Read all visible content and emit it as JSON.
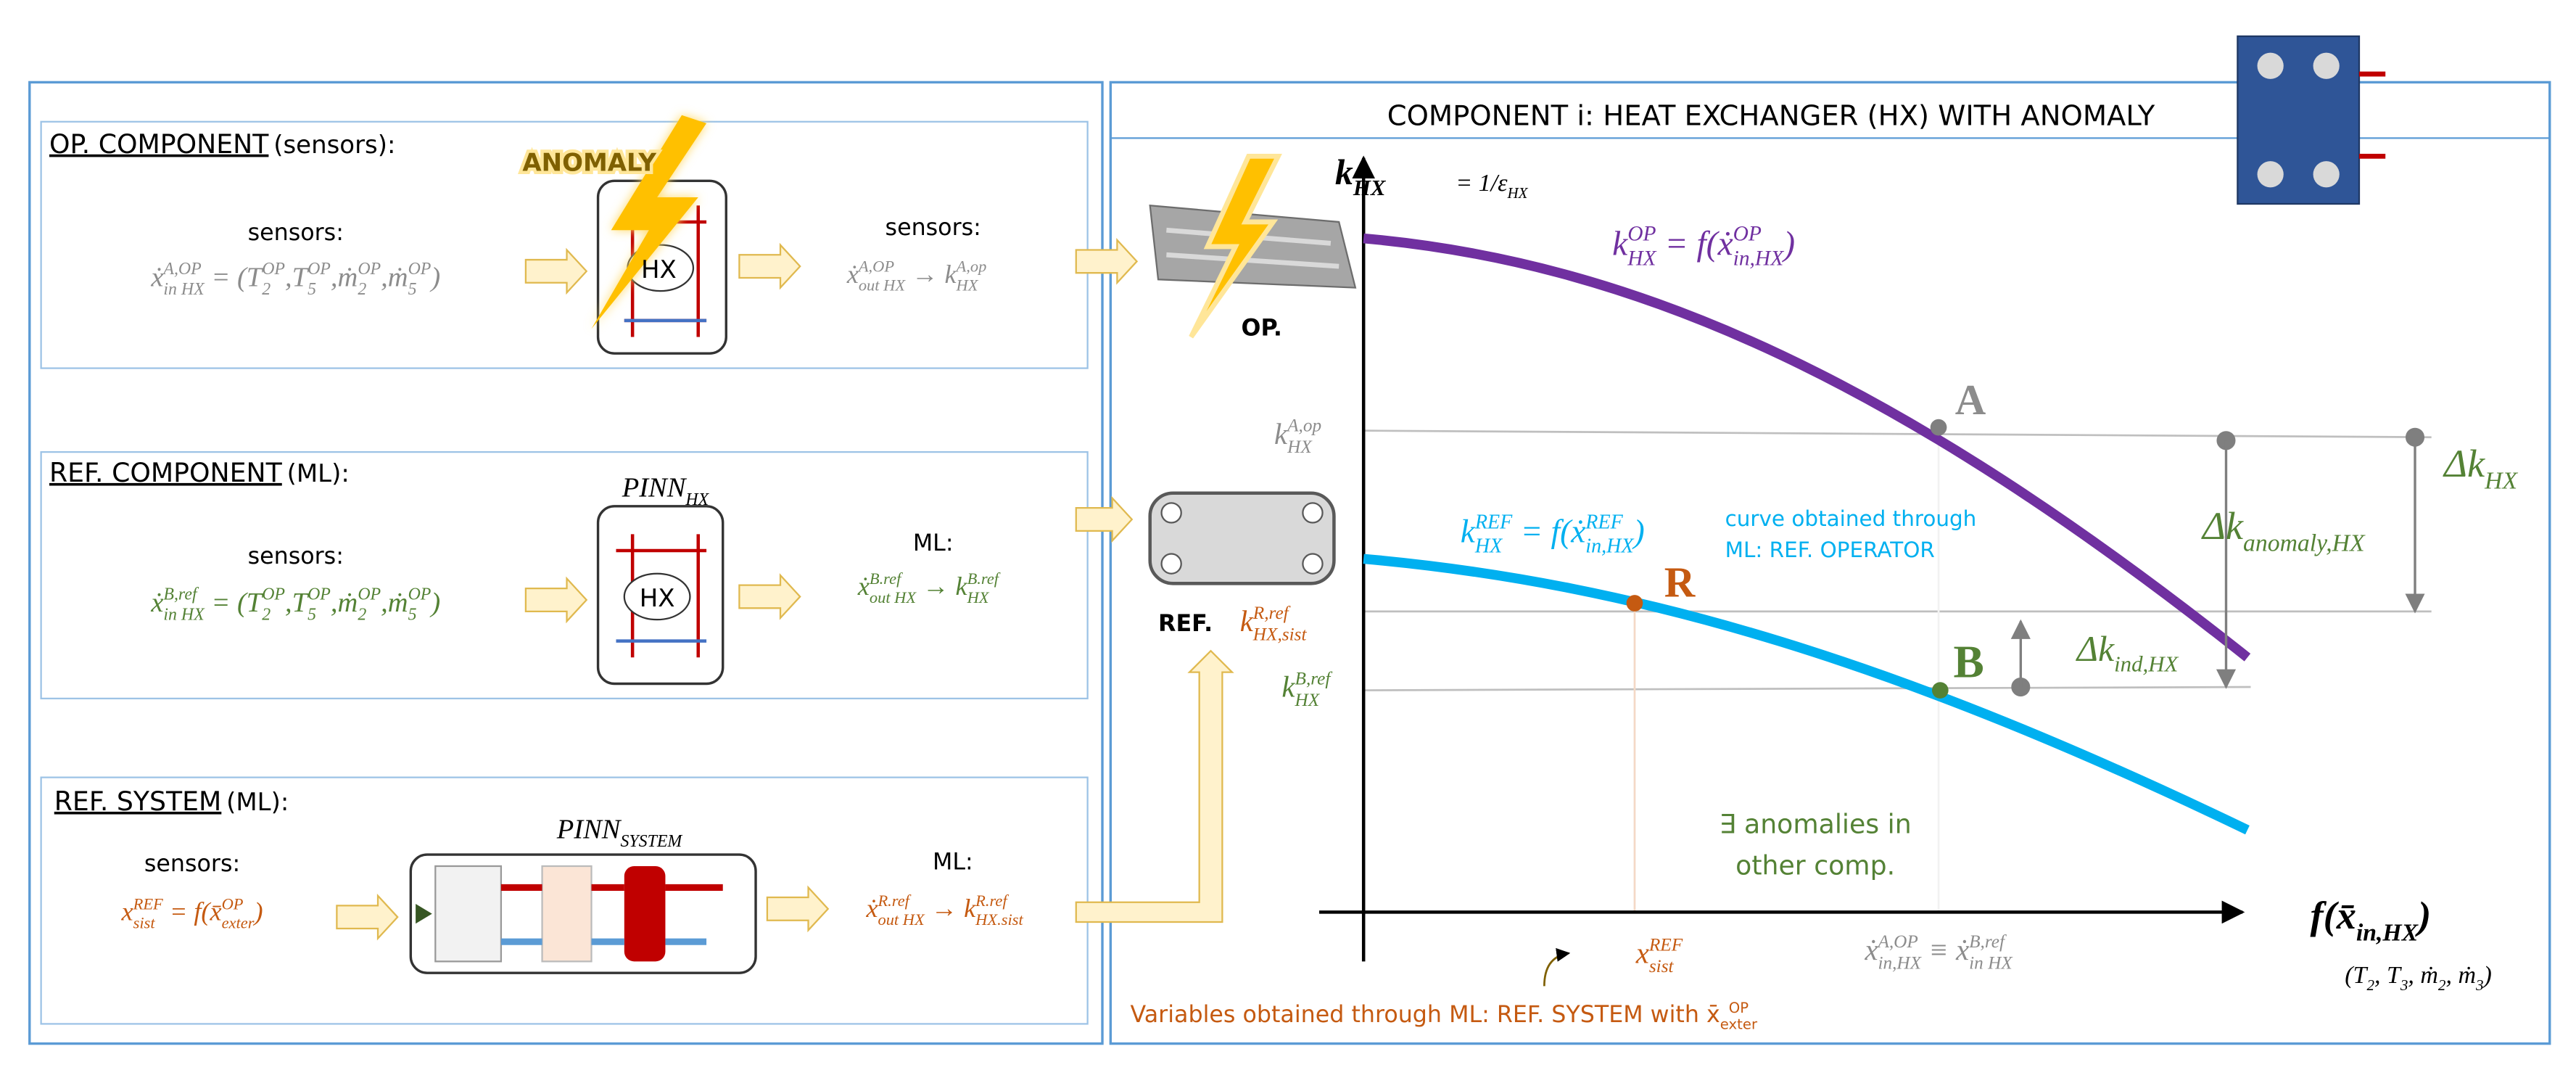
{
  "left_panel": {
    "op_component": {
      "title": "OP. COMPONENT",
      "title_note": "(sensors):",
      "anomaly": "ANOMALY",
      "sensors_in_label": "sensors:",
      "input": [
        {
          "t": "ẋ"
        },
        {
          "t": "in HX",
          "s": "sub"
        },
        {
          "t": "A,OP",
          "s": "sup"
        },
        {
          "t": " = (T"
        },
        {
          "t": "2",
          "s": "sub"
        },
        {
          "t": "OP",
          "s": "sup"
        },
        {
          "t": ",T"
        },
        {
          "t": "5",
          "s": "sub"
        },
        {
          "t": "OP",
          "s": "sup"
        },
        {
          "t": ",ṁ"
        },
        {
          "t": "2",
          "s": "sub"
        },
        {
          "t": "OP",
          "s": "sup"
        },
        {
          "t": ",ṁ"
        },
        {
          "t": "5",
          "s": "sub"
        },
        {
          "t": "OP",
          "s": "sup"
        },
        {
          "t": ")"
        }
      ],
      "block": "HX",
      "sensors_out_label": "sensors:",
      "output": [
        {
          "t": "ẋ"
        },
        {
          "t": "out HX",
          "s": "sub"
        },
        {
          "t": "A,OP",
          "s": "sup"
        },
        {
          "t": " → k"
        },
        {
          "t": "HX",
          "s": "sub"
        },
        {
          "t": "A,op",
          "s": "sup"
        }
      ]
    },
    "ref_component": {
      "title": "REF. COMPONENT",
      "title_note": "(ML):",
      "model": [
        {
          "t": "PINN"
        },
        {
          "t": "HX",
          "s": "sub"
        }
      ],
      "sensors_in_label": "sensors:",
      "input": [
        {
          "t": "ẋ"
        },
        {
          "t": "in HX",
          "s": "sub"
        },
        {
          "t": "B,ref",
          "s": "sup"
        },
        {
          "t": " = (T"
        },
        {
          "t": "2",
          "s": "sub"
        },
        {
          "t": "OP",
          "s": "sup"
        },
        {
          "t": ",T"
        },
        {
          "t": "5",
          "s": "sub"
        },
        {
          "t": "OP",
          "s": "sup"
        },
        {
          "t": ",ṁ"
        },
        {
          "t": "2",
          "s": "sub"
        },
        {
          "t": "OP",
          "s": "sup"
        },
        {
          "t": ",ṁ"
        },
        {
          "t": "5",
          "s": "sub"
        },
        {
          "t": "OP",
          "s": "sup"
        },
        {
          "t": ")"
        }
      ],
      "block": "HX",
      "out_label": "ML:",
      "output": [
        {
          "t": "ẋ"
        },
        {
          "t": "out HX",
          "s": "sub"
        },
        {
          "t": "B.ref",
          "s": "sup"
        },
        {
          "t": " → k"
        },
        {
          "t": "HX",
          "s": "sub"
        },
        {
          "t": "B.ref",
          "s": "sup"
        }
      ]
    },
    "ref_system": {
      "title": "REF. SYSTEM",
      "title_note": "(ML):",
      "model": [
        {
          "t": "PINN"
        },
        {
          "t": "SYSTEM",
          "s": "sub"
        }
      ],
      "sensors_in_label": "sensors:",
      "input": [
        {
          "t": "x"
        },
        {
          "t": "sist",
          "s": "sub"
        },
        {
          "t": "REF",
          "s": "sup"
        },
        {
          "t": " = f(x̄"
        },
        {
          "t": "exter",
          "s": "sub"
        },
        {
          "t": "OP",
          "s": "sup"
        },
        {
          "t": ")"
        }
      ],
      "out_label": "ML:",
      "output": [
        {
          "t": "ẋ"
        },
        {
          "t": "out HX",
          "s": "sub"
        },
        {
          "t": "R.ref",
          "s": "sup"
        },
        {
          "t": " → k"
        },
        {
          "t": "HX.sist",
          "s": "sub"
        },
        {
          "t": "R.ref",
          "s": "sup"
        }
      ]
    }
  },
  "right_panel": {
    "title": "COMPONENT i: HEAT EXCHANGER (HX) WITH ANOMALY",
    "op_label": "OP.",
    "ref_label": "REF.",
    "y_axis_label": [
      {
        "t": "k"
      },
      {
        "t": "HX",
        "s": "sub"
      }
    ],
    "y_axis_def": [
      {
        "t": "= 1/ε"
      },
      {
        "t": "HX",
        "s": "sub"
      }
    ],
    "x_axis_label": [
      {
        "t": "f(x̄"
      },
      {
        "t": "in,HX",
        "s": "sub"
      },
      {
        "t": ")"
      }
    ],
    "x_axis_vars": [
      {
        "t": "(T"
      },
      {
        "t": "2",
        "s": "sub"
      },
      {
        "t": ", T"
      },
      {
        "t": "3",
        "s": "sub"
      },
      {
        "t": ", ṁ"
      },
      {
        "t": "2",
        "s": "sub"
      },
      {
        "t": ", ṁ"
      },
      {
        "t": "3",
        "s": "sub"
      },
      {
        "t": ")"
      }
    ],
    "curve_op": [
      {
        "t": "k"
      },
      {
        "t": "HX",
        "s": "sub"
      },
      {
        "t": "OP",
        "s": "sup"
      },
      {
        "t": " = f(ẋ"
      },
      {
        "t": "in,HX",
        "s": "sub"
      },
      {
        "t": "OP",
        "s": "sup"
      },
      {
        "t": ")"
      }
    ],
    "curve_ref": [
      {
        "t": "k"
      },
      {
        "t": "HX",
        "s": "sub"
      },
      {
        "t": "REF",
        "s": "sup"
      },
      {
        "t": " = f(ẋ"
      },
      {
        "t": "in,HX",
        "s": "sub"
      },
      {
        "t": "REF",
        "s": "sup"
      },
      {
        "t": ")"
      }
    ],
    "curve_ref_note": [
      "curve obtained through",
      "ML: REF. OPERATOR"
    ],
    "point_a": "A",
    "point_r": "R",
    "point_b": "B",
    "k_a": [
      {
        "t": "k"
      },
      {
        "t": "HX",
        "s": "sub"
      },
      {
        "t": "A,op",
        "s": "sup"
      }
    ],
    "k_r": [
      {
        "t": "k"
      },
      {
        "t": "HX,sist",
        "s": "sub"
      },
      {
        "t": "R,ref",
        "s": "sup"
      }
    ],
    "k_b": [
      {
        "t": "k"
      },
      {
        "t": "HX",
        "s": "sub"
      },
      {
        "t": "B,ref",
        "s": "sup"
      }
    ],
    "delta_total": [
      {
        "t": "Δk"
      },
      {
        "t": "HX",
        "s": "sub"
      }
    ],
    "delta_anomaly": [
      {
        "t": "Δk"
      },
      {
        "t": "anomaly,HX",
        "s": "sub"
      }
    ],
    "delta_ind": [
      {
        "t": "Δk"
      },
      {
        "t": "ind,HX",
        "s": "sub"
      }
    ],
    "anomalies_note": [
      "∃ anomalies in",
      "other comp."
    ],
    "x_r": [
      {
        "t": "x"
      },
      {
        "t": "sist",
        "s": "sub"
      },
      {
        "t": "REF",
        "s": "sup"
      }
    ],
    "x_ab": [
      {
        "t": "ẋ"
      },
      {
        "t": "in,HX",
        "s": "sub"
      },
      {
        "t": "A,OP",
        "s": "sup"
      },
      {
        "t": " ≡ ẋ"
      },
      {
        "t": "in HX",
        "s": "sub"
      },
      {
        "t": "B,ref",
        "s": "sup"
      }
    ],
    "footnote": [
      {
        "t": "Variables obtained through ML: REF. SYSTEM with x̄"
      },
      {
        "t": "exter",
        "s": "sub"
      },
      {
        "t": "OP",
        "s": "sup"
      }
    ]
  }
}
